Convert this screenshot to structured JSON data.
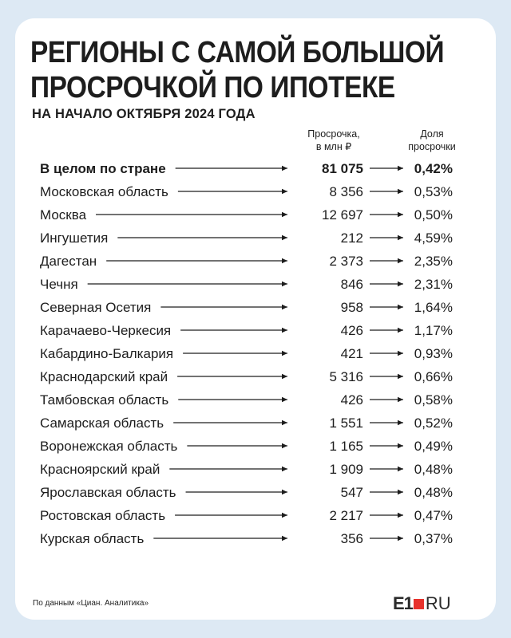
{
  "header": {
    "title_line1": "РЕГИОНЫ С САМОЙ БОЛЬШОЙ",
    "title_line2": "ПРОСРОЧКОЙ ПО ИПОТЕКЕ",
    "subtitle": "НА НАЧАЛО ОКТЯБРЯ 2024 ГОДА"
  },
  "columns": {
    "overdue_line1": "Просрочка,",
    "overdue_line2": "в млн ₽",
    "share_line1": "Доля",
    "share_line2": "просрочки"
  },
  "chart_data": {
    "type": "table",
    "title": "РЕГИОНЫ С САМОЙ БОЛЬШОЙ ПРОСРОЧКОЙ ПО ИПОТЕКЕ",
    "subtitle": "НА НАЧАЛО ОКТЯБРЯ 2024 ГОДА",
    "columns": [
      "Просрочка, в млн ₽",
      "Доля просрочки"
    ],
    "rows": [
      {
        "region": "В целом по стране",
        "overdue": "81 075",
        "share": "0,42%",
        "bold": true
      },
      {
        "region": "Московская область",
        "overdue": "8 356",
        "share": "0,53%"
      },
      {
        "region": "Москва",
        "overdue": "12 697",
        "share": "0,50%"
      },
      {
        "region": "Ингушетия",
        "overdue": "212",
        "share": "4,59%"
      },
      {
        "region": "Дагестан",
        "overdue": "2 373",
        "share": "2,35%"
      },
      {
        "region": "Чечня",
        "overdue": "846",
        "share": "2,31%"
      },
      {
        "region": "Северная Осетия",
        "overdue": "958",
        "share": "1,64%"
      },
      {
        "region": "Карачаево-Черкесия",
        "overdue": "426",
        "share": "1,17%"
      },
      {
        "region": "Кабардино-Балкария",
        "overdue": "421",
        "share": "0,93%"
      },
      {
        "region": "Краснодарский край",
        "overdue": "5 316",
        "share": "0,66%"
      },
      {
        "region": "Тамбовская область",
        "overdue": "426",
        "share": "0,58%"
      },
      {
        "region": "Самарская область",
        "overdue": "1 551",
        "share": "0,52%"
      },
      {
        "region": "Воронежская область",
        "overdue": "1 165",
        "share": "0,49%"
      },
      {
        "region": "Красноярский край",
        "overdue": "1 909",
        "share": "0,48%"
      },
      {
        "region": "Ярославская область",
        "overdue": "547",
        "share": "0,48%"
      },
      {
        "region": "Ростовская область",
        "overdue": "2 217",
        "share": "0,47%"
      },
      {
        "region": "Курская область",
        "overdue": "356",
        "share": "0,37%"
      }
    ]
  },
  "footer": {
    "source": "По данным «Циан. Аналитика»",
    "logo_mark": "E1",
    "logo_domain": "RU"
  },
  "colors": {
    "background": "#dde9f4",
    "card": "#ffffff",
    "text": "#1d1d1d",
    "logo_accent": "#e8322c"
  }
}
